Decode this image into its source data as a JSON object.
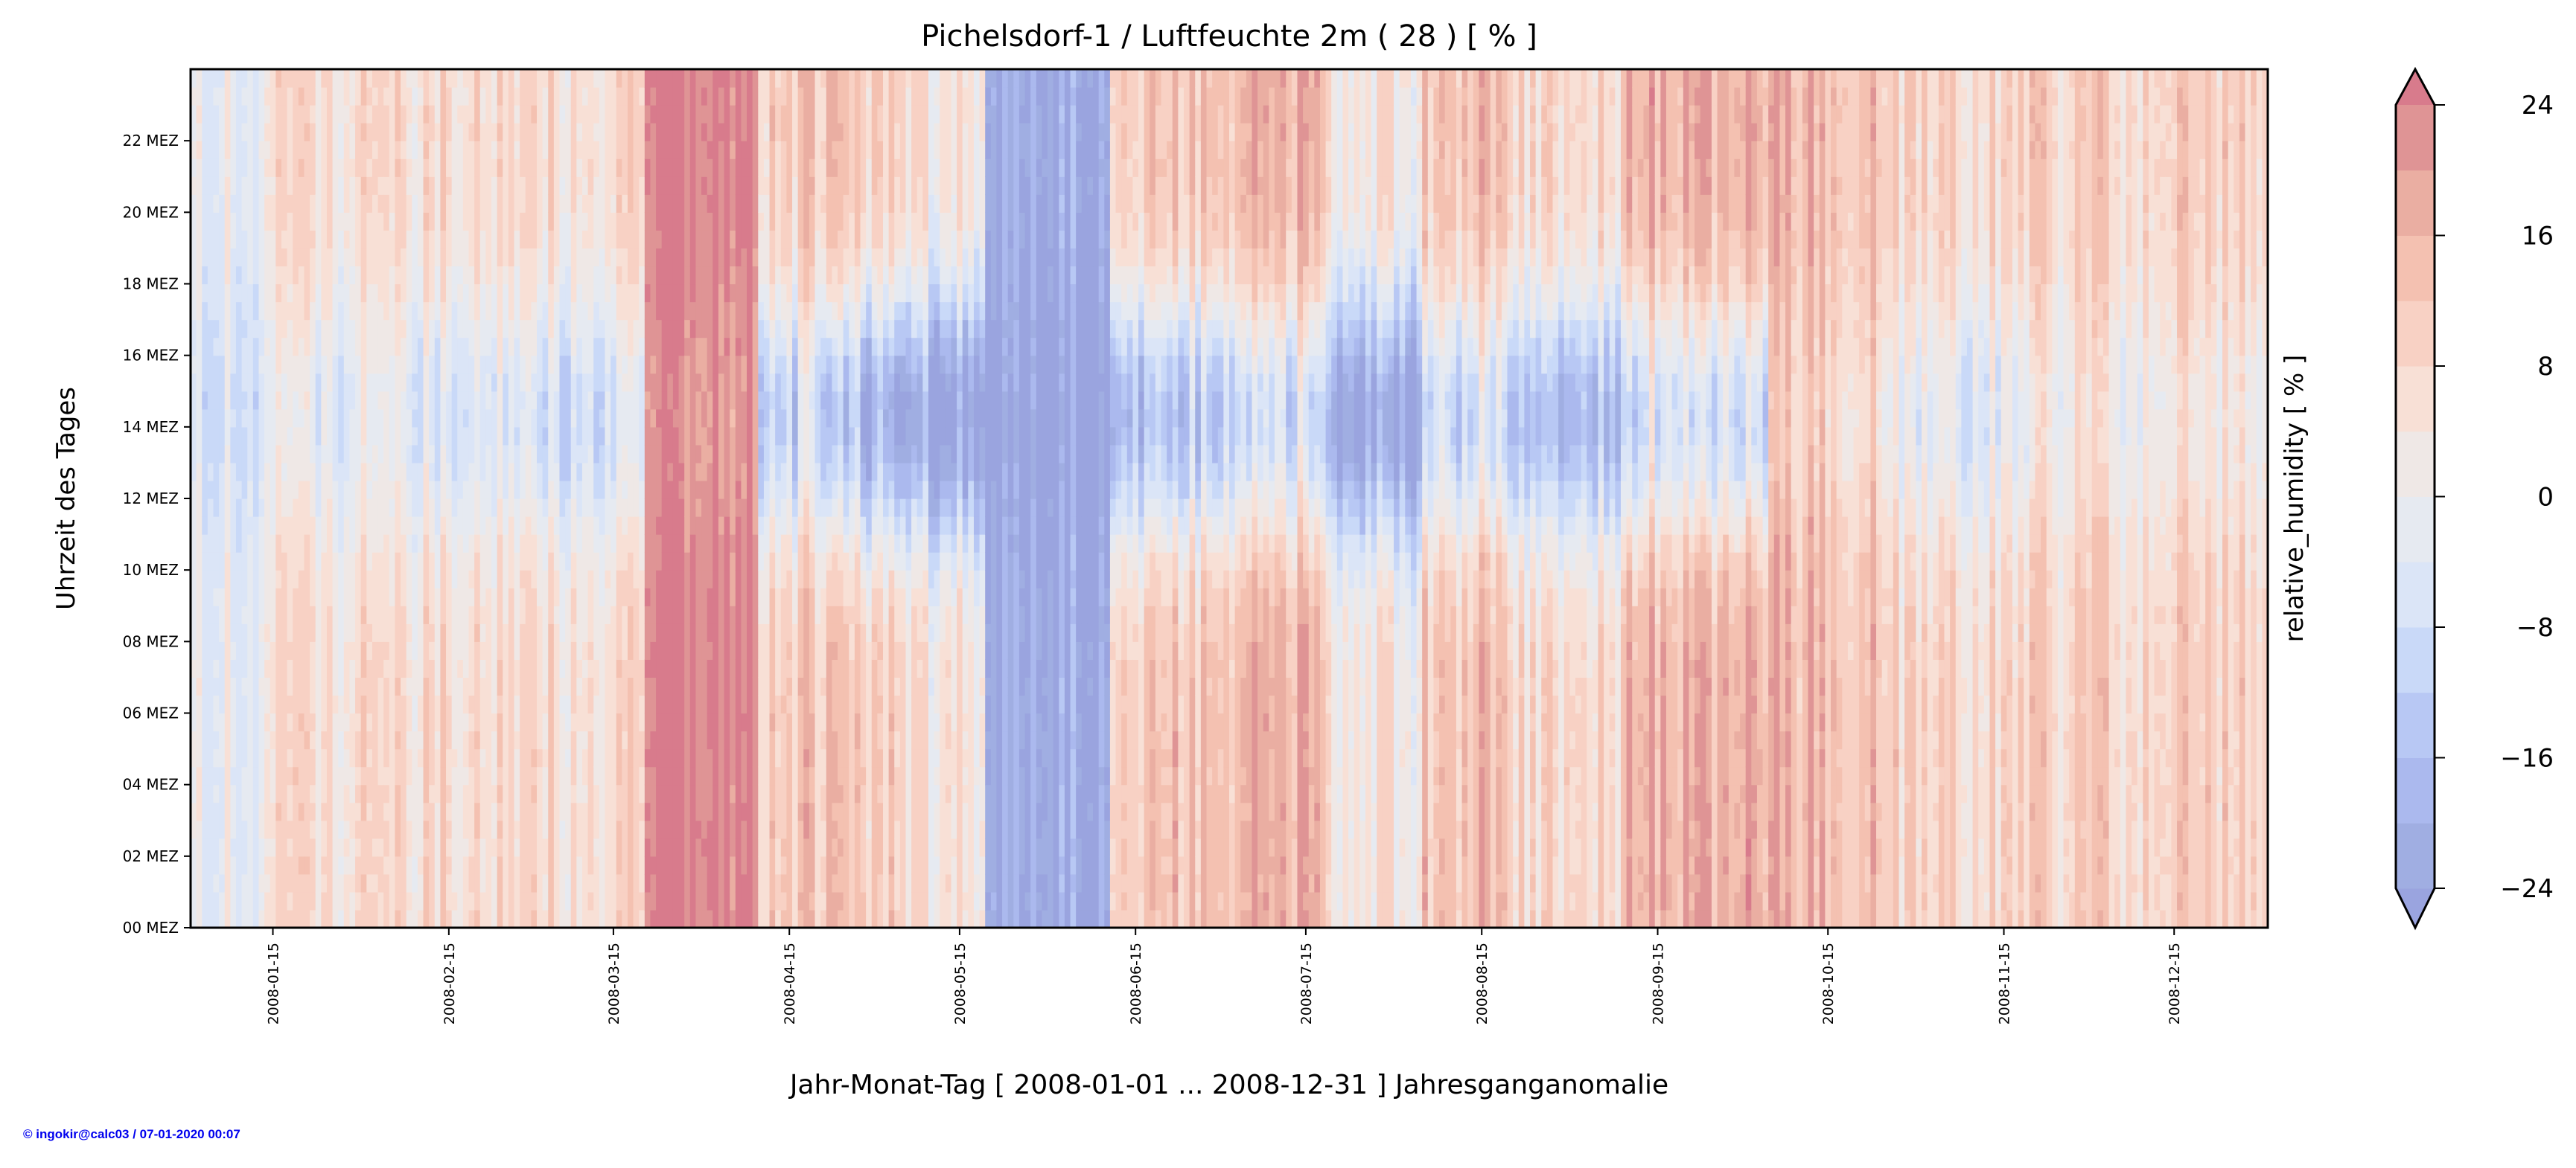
{
  "chart_data": {
    "type": "heatmap",
    "title": "Pichelsdorf-1 / Luftfeuchte 2m ( 28 ) [ % ]",
    "xlabel": "Jahr-Monat-Tag [ 2008-01-01 ... 2008-12-31 ] Jahresganganomalie",
    "ylabel": "Uhrzeit des Tages",
    "colorbar_label": "relative_humidity [ % ]",
    "x_range": [
      "2008-01-01",
      "2008-12-31"
    ],
    "y_range_hours": [
      0,
      24
    ],
    "x_ticks": [
      {
        "label": "2008-01-15",
        "day": 14
      },
      {
        "label": "2008-02-15",
        "day": 45
      },
      {
        "label": "2008-03-15",
        "day": 74
      },
      {
        "label": "2008-04-15",
        "day": 105
      },
      {
        "label": "2008-05-15",
        "day": 135
      },
      {
        "label": "2008-06-15",
        "day": 166
      },
      {
        "label": "2008-07-15",
        "day": 196
      },
      {
        "label": "2008-08-15",
        "day": 227
      },
      {
        "label": "2008-09-15",
        "day": 258
      },
      {
        "label": "2008-10-15",
        "day": 288
      },
      {
        "label": "2008-11-15",
        "day": 319
      },
      {
        "label": "2008-12-15",
        "day": 349
      }
    ],
    "y_ticks": [
      {
        "label": "00 MEZ",
        "hour": 0
      },
      {
        "label": "02 MEZ",
        "hour": 2
      },
      {
        "label": "04 MEZ",
        "hour": 4
      },
      {
        "label": "06 MEZ",
        "hour": 6
      },
      {
        "label": "08 MEZ",
        "hour": 8
      },
      {
        "label": "10 MEZ",
        "hour": 10
      },
      {
        "label": "12 MEZ",
        "hour": 12
      },
      {
        "label": "14 MEZ",
        "hour": 14
      },
      {
        "label": "16 MEZ",
        "hour": 16
      },
      {
        "label": "18 MEZ",
        "hour": 18
      },
      {
        "label": "20 MEZ",
        "hour": 20
      },
      {
        "label": "22 MEZ",
        "hour": 22
      }
    ],
    "colorbar_ticks": [
      {
        "label": "24",
        "value": 24
      },
      {
        "label": "16",
        "value": 16
      },
      {
        "label": "8",
        "value": 8
      },
      {
        "label": "0",
        "value": 0
      },
      {
        "label": "−8",
        "value": -8
      },
      {
        "label": "−16",
        "value": -16
      },
      {
        "label": "−24",
        "value": -24
      }
    ],
    "levels": [
      -24,
      -20,
      -16,
      -12,
      -8,
      -4,
      0,
      4,
      8,
      12,
      16,
      20,
      24
    ],
    "colors": {
      "under": "#9aa4df",
      "bins": [
        "#a0aee2",
        "#abb9ee",
        "#b8c8f4",
        "#c9d9f8",
        "#dbe5f7",
        "#e6eaf1",
        "#efe8e6",
        "#f8e0d6",
        "#f8d1c4",
        "#f4c1b1",
        "#eaaea2",
        "#df9495"
      ],
      "over": "#d87b8c"
    },
    "segments_note": "approximate anomaly per date segment: night-time level and midday depression",
    "segments": [
      {
        "start": 0,
        "end": 14,
        "mean": 0,
        "midday_drop": 5
      },
      {
        "start": 14,
        "end": 40,
        "mean": 5,
        "midday_drop": 9
      },
      {
        "start": 40,
        "end": 60,
        "mean": 9,
        "midday_drop": 12
      },
      {
        "start": 60,
        "end": 80,
        "mean": 7,
        "midday_drop": 14
      },
      {
        "start": 80,
        "end": 100,
        "mean": 27,
        "midday_drop": 4
      },
      {
        "start": 100,
        "end": 111,
        "mean": 12,
        "midday_drop": 22
      },
      {
        "start": 111,
        "end": 125,
        "mean": 12,
        "midday_drop": 30
      },
      {
        "start": 125,
        "end": 140,
        "mean": 4,
        "midday_drop": 32
      },
      {
        "start": 140,
        "end": 162,
        "mean": -22,
        "midday_drop": 4
      },
      {
        "start": 162,
        "end": 182,
        "mean": 12,
        "midday_drop": 26
      },
      {
        "start": 182,
        "end": 200,
        "mean": 16,
        "midday_drop": 24
      },
      {
        "start": 200,
        "end": 217,
        "mean": 4,
        "midday_drop": 28
      },
      {
        "start": 217,
        "end": 232,
        "mean": 14,
        "midday_drop": 22
      },
      {
        "start": 232,
        "end": 253,
        "mean": 8,
        "midday_drop": 24
      },
      {
        "start": 253,
        "end": 278,
        "mean": 16,
        "midday_drop": 24
      },
      {
        "start": 278,
        "end": 298,
        "mean": 15,
        "midday_drop": 6
      },
      {
        "start": 298,
        "end": 325,
        "mean": 9,
        "midday_drop": 11
      },
      {
        "start": 325,
        "end": 366,
        "mean": 9,
        "midday_drop": 7
      }
    ]
  },
  "footer": "© ingokir@calc03 / 07-01-2020 00:07"
}
